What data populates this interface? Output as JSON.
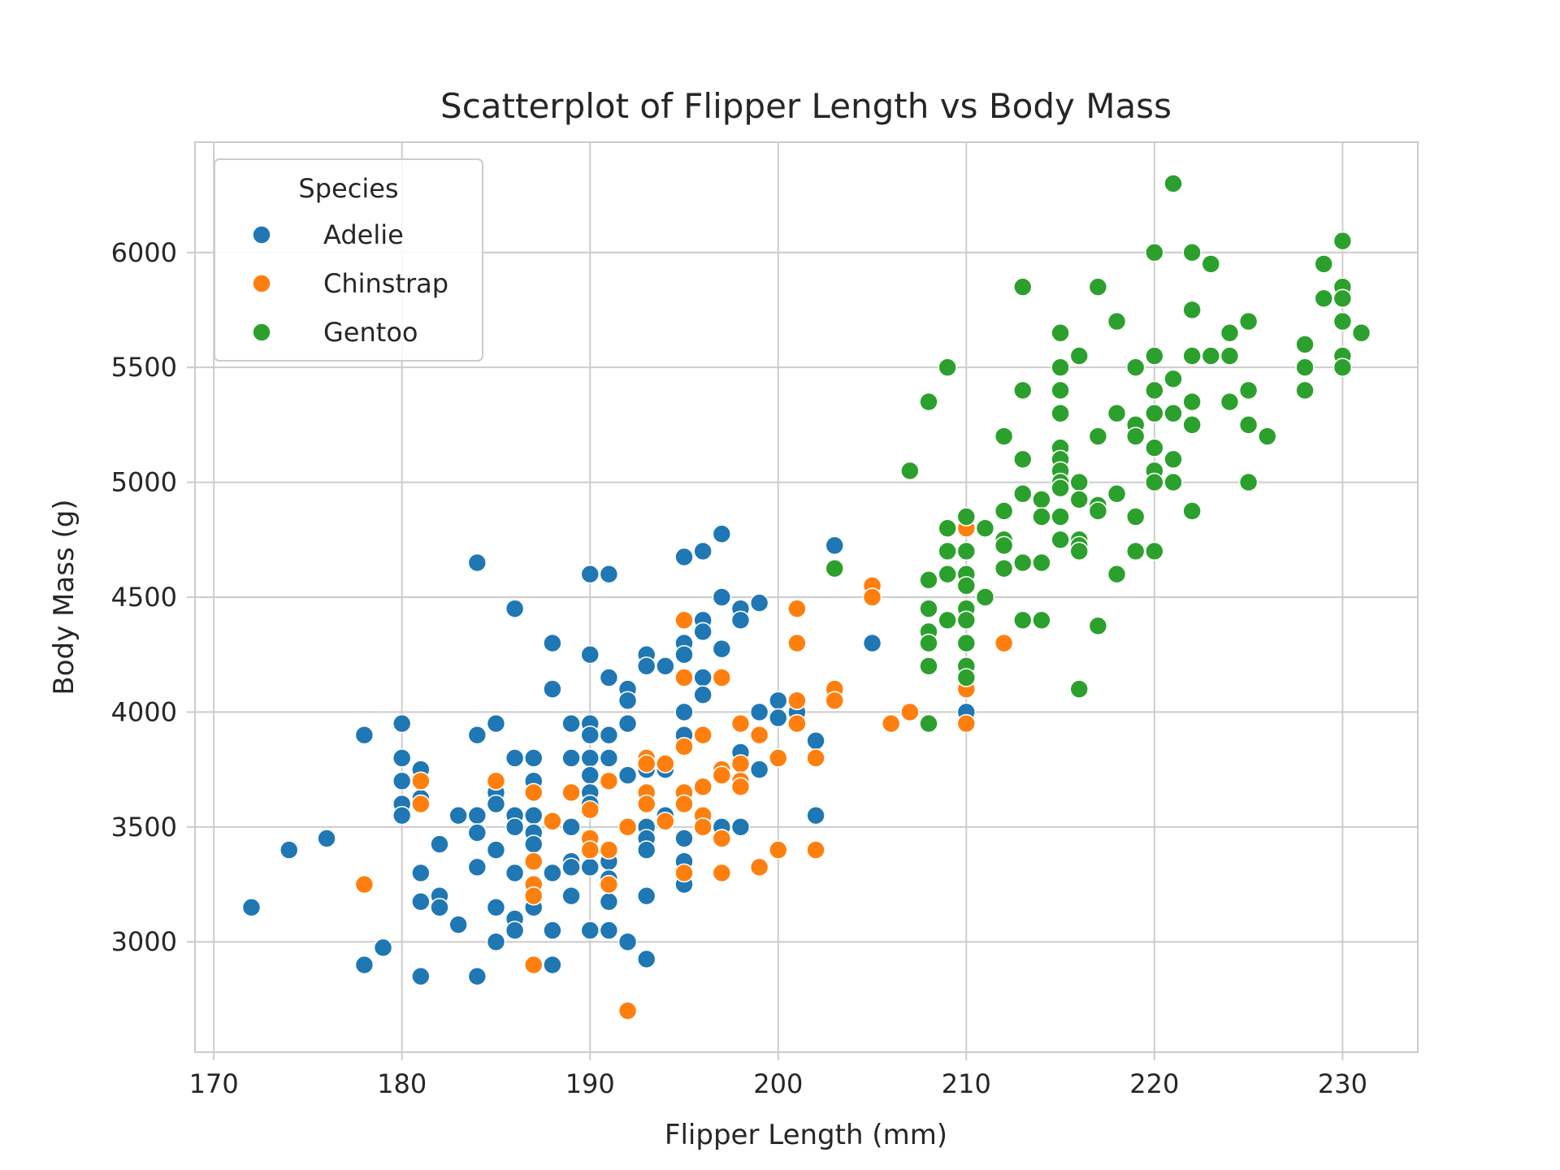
{
  "chart_data": {
    "type": "scatter",
    "title": "Scatterplot of Flipper Length vs Body Mass",
    "xlabel": "Flipper Length (mm)",
    "ylabel": "Body Mass (g)",
    "xlim": [
      169,
      234
    ],
    "ylim": [
      2520,
      6480
    ],
    "xticks": [
      170,
      180,
      190,
      200,
      210,
      220,
      230
    ],
    "yticks": [
      3000,
      3500,
      4000,
      4500,
      5000,
      5500,
      6000
    ],
    "grid": true,
    "legend": {
      "title": "Species",
      "position": "top-left"
    },
    "series": [
      {
        "name": "Adelie",
        "color": "#1f77b4",
        "points": [
          [
            172,
            3150
          ],
          [
            174,
            3400
          ],
          [
            176,
            3450
          ],
          [
            178,
            3900
          ],
          [
            178,
            2900
          ],
          [
            179,
            2975
          ],
          [
            180,
            3950
          ],
          [
            180,
            3800
          ],
          [
            180,
            3700
          ],
          [
            180,
            3600
          ],
          [
            180,
            3550
          ],
          [
            181,
            3750
          ],
          [
            181,
            3625
          ],
          [
            181,
            3300
          ],
          [
            181,
            3175
          ],
          [
            181,
            2850
          ],
          [
            182,
            3425
          ],
          [
            182,
            3200
          ],
          [
            182,
            3150
          ],
          [
            183,
            3550
          ],
          [
            183,
            3075
          ],
          [
            184,
            4650
          ],
          [
            184,
            3900
          ],
          [
            184,
            3550
          ],
          [
            184,
            3475
          ],
          [
            184,
            3325
          ],
          [
            184,
            2850
          ],
          [
            185,
            3950
          ],
          [
            185,
            3650
          ],
          [
            185,
            3600
          ],
          [
            185,
            3400
          ],
          [
            185,
            3150
          ],
          [
            185,
            3000
          ],
          [
            186,
            4450
          ],
          [
            186,
            3800
          ],
          [
            186,
            3550
          ],
          [
            186,
            3500
          ],
          [
            186,
            3300
          ],
          [
            186,
            3100
          ],
          [
            186,
            3050
          ],
          [
            187,
            3800
          ],
          [
            187,
            3700
          ],
          [
            187,
            3550
          ],
          [
            187,
            3475
          ],
          [
            187,
            3425
          ],
          [
            187,
            3150
          ],
          [
            188,
            4300
          ],
          [
            188,
            4100
          ],
          [
            188,
            3300
          ],
          [
            188,
            3050
          ],
          [
            188,
            2900
          ],
          [
            189,
            3950
          ],
          [
            189,
            3800
          ],
          [
            189,
            3500
          ],
          [
            189,
            3350
          ],
          [
            189,
            3325
          ],
          [
            189,
            3200
          ],
          [
            190,
            4600
          ],
          [
            190,
            4250
          ],
          [
            190,
            3950
          ],
          [
            190,
            3900
          ],
          [
            190,
            3800
          ],
          [
            190,
            3725
          ],
          [
            190,
            3650
          ],
          [
            190,
            3600
          ],
          [
            190,
            3325
          ],
          [
            190,
            3050
          ],
          [
            191,
            4600
          ],
          [
            191,
            4150
          ],
          [
            191,
            3900
          ],
          [
            191,
            3800
          ],
          [
            191,
            3350
          ],
          [
            191,
            3275
          ],
          [
            191,
            3175
          ],
          [
            191,
            3050
          ],
          [
            192,
            4100
          ],
          [
            192,
            4050
          ],
          [
            192,
            3950
          ],
          [
            192,
            3725
          ],
          [
            192,
            3000
          ],
          [
            193,
            4250
          ],
          [
            193,
            4200
          ],
          [
            193,
            3750
          ],
          [
            193,
            3500
          ],
          [
            193,
            3450
          ],
          [
            193,
            3400
          ],
          [
            193,
            3200
          ],
          [
            193,
            2925
          ],
          [
            194,
            4200
          ],
          [
            194,
            3750
          ],
          [
            194,
            3550
          ],
          [
            195,
            4675
          ],
          [
            195,
            4300
          ],
          [
            195,
            4250
          ],
          [
            195,
            4000
          ],
          [
            195,
            3900
          ],
          [
            195,
            3650
          ],
          [
            195,
            3450
          ],
          [
            195,
            3350
          ],
          [
            195,
            3250
          ],
          [
            196,
            4700
          ],
          [
            196,
            4400
          ],
          [
            196,
            4350
          ],
          [
            196,
            4150
          ],
          [
            196,
            4075
          ],
          [
            196,
            3500
          ],
          [
            197,
            4775
          ],
          [
            197,
            4500
          ],
          [
            197,
            4275
          ],
          [
            197,
            3750
          ],
          [
            197,
            3500
          ],
          [
            198,
            4450
          ],
          [
            198,
            4400
          ],
          [
            198,
            3825
          ],
          [
            198,
            3500
          ],
          [
            199,
            4475
          ],
          [
            199,
            4000
          ],
          [
            199,
            3750
          ],
          [
            200,
            4050
          ],
          [
            200,
            3975
          ],
          [
            201,
            4000
          ],
          [
            202,
            3875
          ],
          [
            202,
            3550
          ],
          [
            203,
            4725
          ],
          [
            205,
            4300
          ],
          [
            210,
            4000
          ]
        ]
      },
      {
        "name": "Chinstrap",
        "color": "#ff7f0e",
        "points": [
          [
            178,
            3250
          ],
          [
            181,
            3700
          ],
          [
            181,
            3600
          ],
          [
            185,
            3700
          ],
          [
            187,
            3650
          ],
          [
            187,
            3350
          ],
          [
            187,
            3250
          ],
          [
            187,
            3200
          ],
          [
            187,
            2900
          ],
          [
            188,
            3525
          ],
          [
            189,
            3650
          ],
          [
            190,
            3575
          ],
          [
            190,
            3450
          ],
          [
            190,
            3400
          ],
          [
            191,
            3700
          ],
          [
            191,
            3400
          ],
          [
            191,
            3250
          ],
          [
            192,
            3500
          ],
          [
            192,
            2700
          ],
          [
            193,
            3800
          ],
          [
            193,
            3775
          ],
          [
            193,
            3650
          ],
          [
            193,
            3600
          ],
          [
            194,
            3775
          ],
          [
            194,
            3525
          ],
          [
            195,
            4400
          ],
          [
            195,
            4150
          ],
          [
            195,
            3850
          ],
          [
            195,
            3650
          ],
          [
            195,
            3600
          ],
          [
            195,
            3300
          ],
          [
            196,
            3900
          ],
          [
            196,
            3675
          ],
          [
            196,
            3550
          ],
          [
            196,
            3500
          ],
          [
            197,
            4150
          ],
          [
            197,
            3750
          ],
          [
            197,
            3725
          ],
          [
            197,
            3450
          ],
          [
            197,
            3300
          ],
          [
            198,
            3950
          ],
          [
            198,
            3775
          ],
          [
            198,
            3700
          ],
          [
            198,
            3675
          ],
          [
            199,
            3900
          ],
          [
            199,
            3325
          ],
          [
            200,
            3800
          ],
          [
            200,
            3400
          ],
          [
            201,
            4450
          ],
          [
            201,
            4300
          ],
          [
            201,
            4050
          ],
          [
            201,
            3950
          ],
          [
            202,
            3800
          ],
          [
            202,
            3400
          ],
          [
            203,
            4100
          ],
          [
            203,
            4050
          ],
          [
            205,
            4550
          ],
          [
            205,
            4500
          ],
          [
            206,
            3950
          ],
          [
            207,
            4000
          ],
          [
            210,
            4800
          ],
          [
            210,
            4100
          ],
          [
            210,
            3950
          ],
          [
            212,
            4300
          ]
        ]
      },
      {
        "name": "Gentoo",
        "color": "#2ca02c",
        "points": [
          [
            203,
            4625
          ],
          [
            207,
            5050
          ],
          [
            208,
            5350
          ],
          [
            208,
            4575
          ],
          [
            208,
            4450
          ],
          [
            208,
            4350
          ],
          [
            208,
            4300
          ],
          [
            208,
            4200
          ],
          [
            208,
            3950
          ],
          [
            209,
            5500
          ],
          [
            209,
            4800
          ],
          [
            209,
            4700
          ],
          [
            209,
            4600
          ],
          [
            209,
            4400
          ],
          [
            210,
            4850
          ],
          [
            210,
            4700
          ],
          [
            210,
            4600
          ],
          [
            210,
            4550
          ],
          [
            210,
            4450
          ],
          [
            210,
            4400
          ],
          [
            210,
            4300
          ],
          [
            210,
            4200
          ],
          [
            210,
            4150
          ],
          [
            211,
            4800
          ],
          [
            211,
            4500
          ],
          [
            212,
            5200
          ],
          [
            212,
            4875
          ],
          [
            212,
            4750
          ],
          [
            212,
            4725
          ],
          [
            212,
            4625
          ],
          [
            213,
            5850
          ],
          [
            213,
            5400
          ],
          [
            213,
            5100
          ],
          [
            213,
            4950
          ],
          [
            213,
            4650
          ],
          [
            213,
            4400
          ],
          [
            214,
            4925
          ],
          [
            214,
            4850
          ],
          [
            214,
            4650
          ],
          [
            214,
            4400
          ],
          [
            215,
            5650
          ],
          [
            215,
            5500
          ],
          [
            215,
            5400
          ],
          [
            215,
            5300
          ],
          [
            215,
            5150
          ],
          [
            215,
            5100
          ],
          [
            215,
            5050
          ],
          [
            215,
            5000
          ],
          [
            215,
            4975
          ],
          [
            215,
            4850
          ],
          [
            215,
            4750
          ],
          [
            216,
            5550
          ],
          [
            216,
            5000
          ],
          [
            216,
            4925
          ],
          [
            216,
            4750
          ],
          [
            216,
            4725
          ],
          [
            216,
            4700
          ],
          [
            216,
            4100
          ],
          [
            217,
            5850
          ],
          [
            217,
            5200
          ],
          [
            217,
            4900
          ],
          [
            217,
            4875
          ],
          [
            217,
            4375
          ],
          [
            218,
            5700
          ],
          [
            218,
            5300
          ],
          [
            218,
            4950
          ],
          [
            218,
            4600
          ],
          [
            219,
            5500
          ],
          [
            219,
            5250
          ],
          [
            219,
            5200
          ],
          [
            219,
            4850
          ],
          [
            219,
            4700
          ],
          [
            220,
            6000
          ],
          [
            220,
            5550
          ],
          [
            220,
            5400
          ],
          [
            220,
            5300
          ],
          [
            220,
            5150
          ],
          [
            220,
            5050
          ],
          [
            220,
            5000
          ],
          [
            220,
            4700
          ],
          [
            221,
            6300
          ],
          [
            221,
            5450
          ],
          [
            221,
            5300
          ],
          [
            221,
            5100
          ],
          [
            221,
            5000
          ],
          [
            222,
            6000
          ],
          [
            222,
            5750
          ],
          [
            222,
            5550
          ],
          [
            222,
            5350
          ],
          [
            222,
            5250
          ],
          [
            222,
            4875
          ],
          [
            223,
            5950
          ],
          [
            223,
            5550
          ],
          [
            224,
            5650
          ],
          [
            224,
            5550
          ],
          [
            224,
            5350
          ],
          [
            225,
            5700
          ],
          [
            225,
            5400
          ],
          [
            225,
            5250
          ],
          [
            225,
            5000
          ],
          [
            226,
            5200
          ],
          [
            228,
            5600
          ],
          [
            228,
            5500
          ],
          [
            228,
            5400
          ],
          [
            229,
            5950
          ],
          [
            229,
            5800
          ],
          [
            230,
            6050
          ],
          [
            230,
            5850
          ],
          [
            230,
            5800
          ],
          [
            230,
            5700
          ],
          [
            230,
            5550
          ],
          [
            230,
            5500
          ],
          [
            231,
            5650
          ]
        ]
      }
    ]
  }
}
